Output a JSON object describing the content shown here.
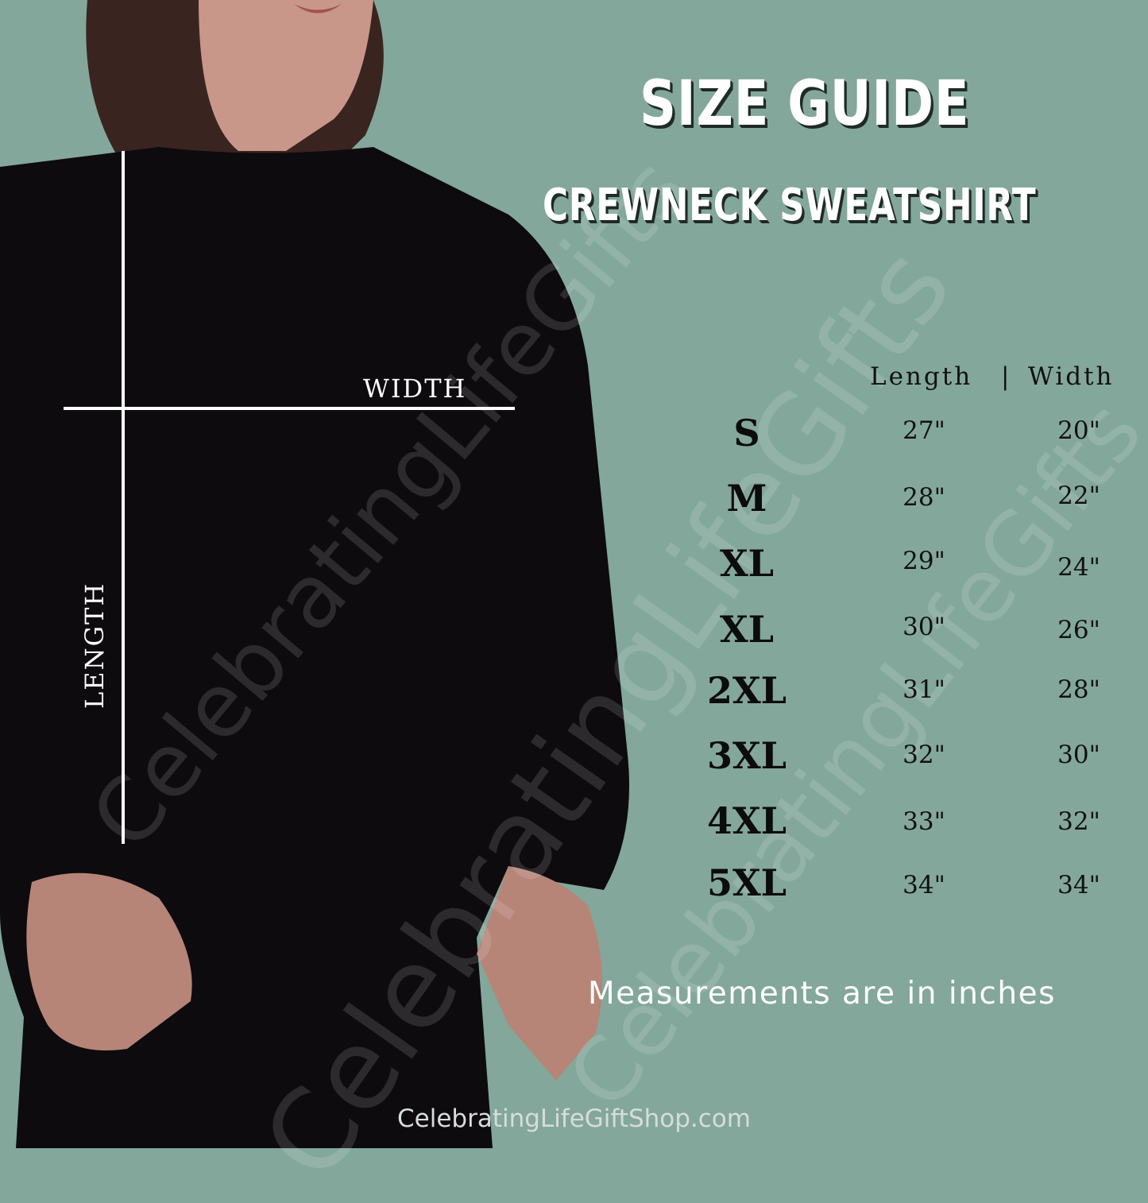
{
  "title": "SIZE GUIDE",
  "subtitle": "CREWNECK SWEATSHIRT",
  "diagram_labels": {
    "width": "WIDTH",
    "length": "LENGTH"
  },
  "table": {
    "header": {
      "length": "Length",
      "separator": "|",
      "width": "Width"
    },
    "rows": [
      {
        "size": "S",
        "length": "27\"",
        "width": "20\""
      },
      {
        "size": "M",
        "length": "28\"",
        "width": "22\""
      },
      {
        "size": "XL",
        "length": "29\"",
        "width": "24\""
      },
      {
        "size": "XL",
        "length": "30\"",
        "width": "26\""
      },
      {
        "size": "2XL",
        "length": "31\"",
        "width": "28\""
      },
      {
        "size": "3XL",
        "length": "32\"",
        "width": "30\""
      },
      {
        "size": "4XL",
        "length": "33\"",
        "width": "32\""
      },
      {
        "size": "5XL",
        "length": "34\"",
        "width": "34\""
      }
    ]
  },
  "note": "Measurements are in inches",
  "website": "CelebratingLifeGiftShop.com",
  "watermark": "CelebratingLifeGifts",
  "colors": {
    "background": "#83a79b",
    "sweatshirt": "#0d0b0d",
    "title_text": "#ffffff",
    "title_shadow": "#1f2a26"
  }
}
